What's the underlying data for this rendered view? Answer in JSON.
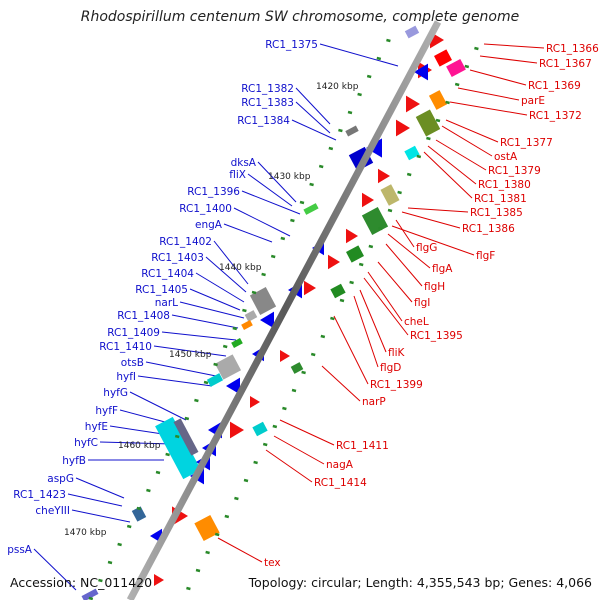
{
  "title": "Rhodospirillum centenum SW chromosome, complete genome",
  "footer": {
    "accession": "Accession: NC_011420",
    "topology": "Topology: circular; Length: 4,355,543 bp; Genes: 4,066"
  },
  "colors": {
    "backbone": "#888888",
    "forward_label": "#1010cc",
    "reverse_label": "#dd0000",
    "tick": "#2a8a2a"
  },
  "ticks": [
    "1420 kbp",
    "1430 kbp",
    "1440 kbp",
    "1450 kbp",
    "1460 kbp",
    "1470 kbp"
  ],
  "left_genes": [
    "RC1_1375",
    "RC1_1382",
    "RC1_1383",
    "RC1_1384",
    "dksA",
    "fliX",
    "RC1_1396",
    "RC1_1400",
    "engA",
    "RC1_1402",
    "RC1_1403",
    "RC1_1404",
    "RC1_1405",
    "narL",
    "RC1_1408",
    "RC1_1409",
    "RC1_1410",
    "otsB",
    "hyfI",
    "hyfG",
    "hyfF",
    "hyfE",
    "hyfC",
    "hyfB",
    "aspG",
    "RC1_1423",
    "cheYIII",
    "pssA"
  ],
  "right_genes": [
    "RC1_1366",
    "RC1_1367",
    "RC1_1369",
    "parE",
    "RC1_1372",
    "RC1_1377",
    "ostA",
    "RC1_1379",
    "RC1_1380",
    "RC1_1381",
    "RC1_1385",
    "RC1_1386",
    "flgG",
    "flgF",
    "flgA",
    "flgH",
    "flgI",
    "cheL",
    "RC1_1395",
    "fliK",
    "flgD",
    "RC1_1399",
    "narP",
    "RC1_1411",
    "nagA",
    "RC1_1414",
    "tex"
  ]
}
